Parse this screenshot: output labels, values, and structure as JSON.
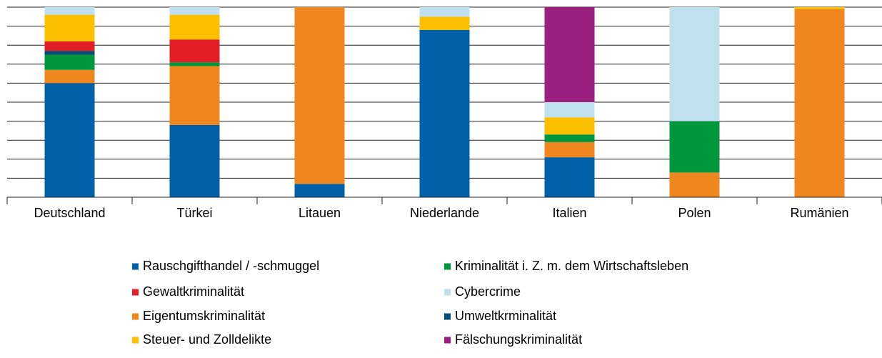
{
  "chart_data": {
    "type": "stacked_bar",
    "categories": [
      "Deutschland",
      "Türkei",
      "Litauen",
      "Niederlande",
      "Italien",
      "Polen",
      "Rumänien"
    ],
    "series": [
      {
        "name": "Rauschgifthandel / -schmuggel",
        "color": "#0060a8",
        "values": [
          60,
          38,
          7,
          88,
          21,
          0,
          0
        ]
      },
      {
        "name": "Gewaltkriminalität",
        "color": "#e31e24",
        "values": [
          5,
          12,
          0,
          0,
          0,
          0,
          0
        ]
      },
      {
        "name": "Eigentumskriminalität",
        "color": "#f0871e",
        "values": [
          7,
          31,
          93,
          0,
          8,
          13,
          99
        ]
      },
      {
        "name": "Steuer- und Zolldelikte",
        "color": "#fcc000",
        "values": [
          14,
          13,
          0,
          7,
          9,
          0,
          1
        ]
      },
      {
        "name": "Kriminalität i. Z. m. dem Wirtschaftsleben",
        "color": "#00963c",
        "values": [
          8,
          2,
          0,
          0,
          4,
          27,
          0
        ]
      },
      {
        "name": "Cybercrime",
        "color": "#c1e0ef",
        "values": [
          4,
          4,
          0,
          5,
          8,
          60,
          0
        ]
      },
      {
        "name": "Umweltkrminalität",
        "color": "#004b78",
        "values": [
          2,
          0,
          0,
          0,
          0,
          0,
          0
        ]
      },
      {
        "name": "Fälschungskriminalität",
        "color": "#9b1f7f",
        "values": [
          0,
          0,
          0,
          0,
          50,
          0,
          0
        ]
      }
    ],
    "ylim": [
      0,
      100
    ],
    "yticks": [
      0,
      10,
      20,
      30,
      40,
      50,
      60,
      70,
      80,
      90,
      100
    ],
    "grid": true
  }
}
